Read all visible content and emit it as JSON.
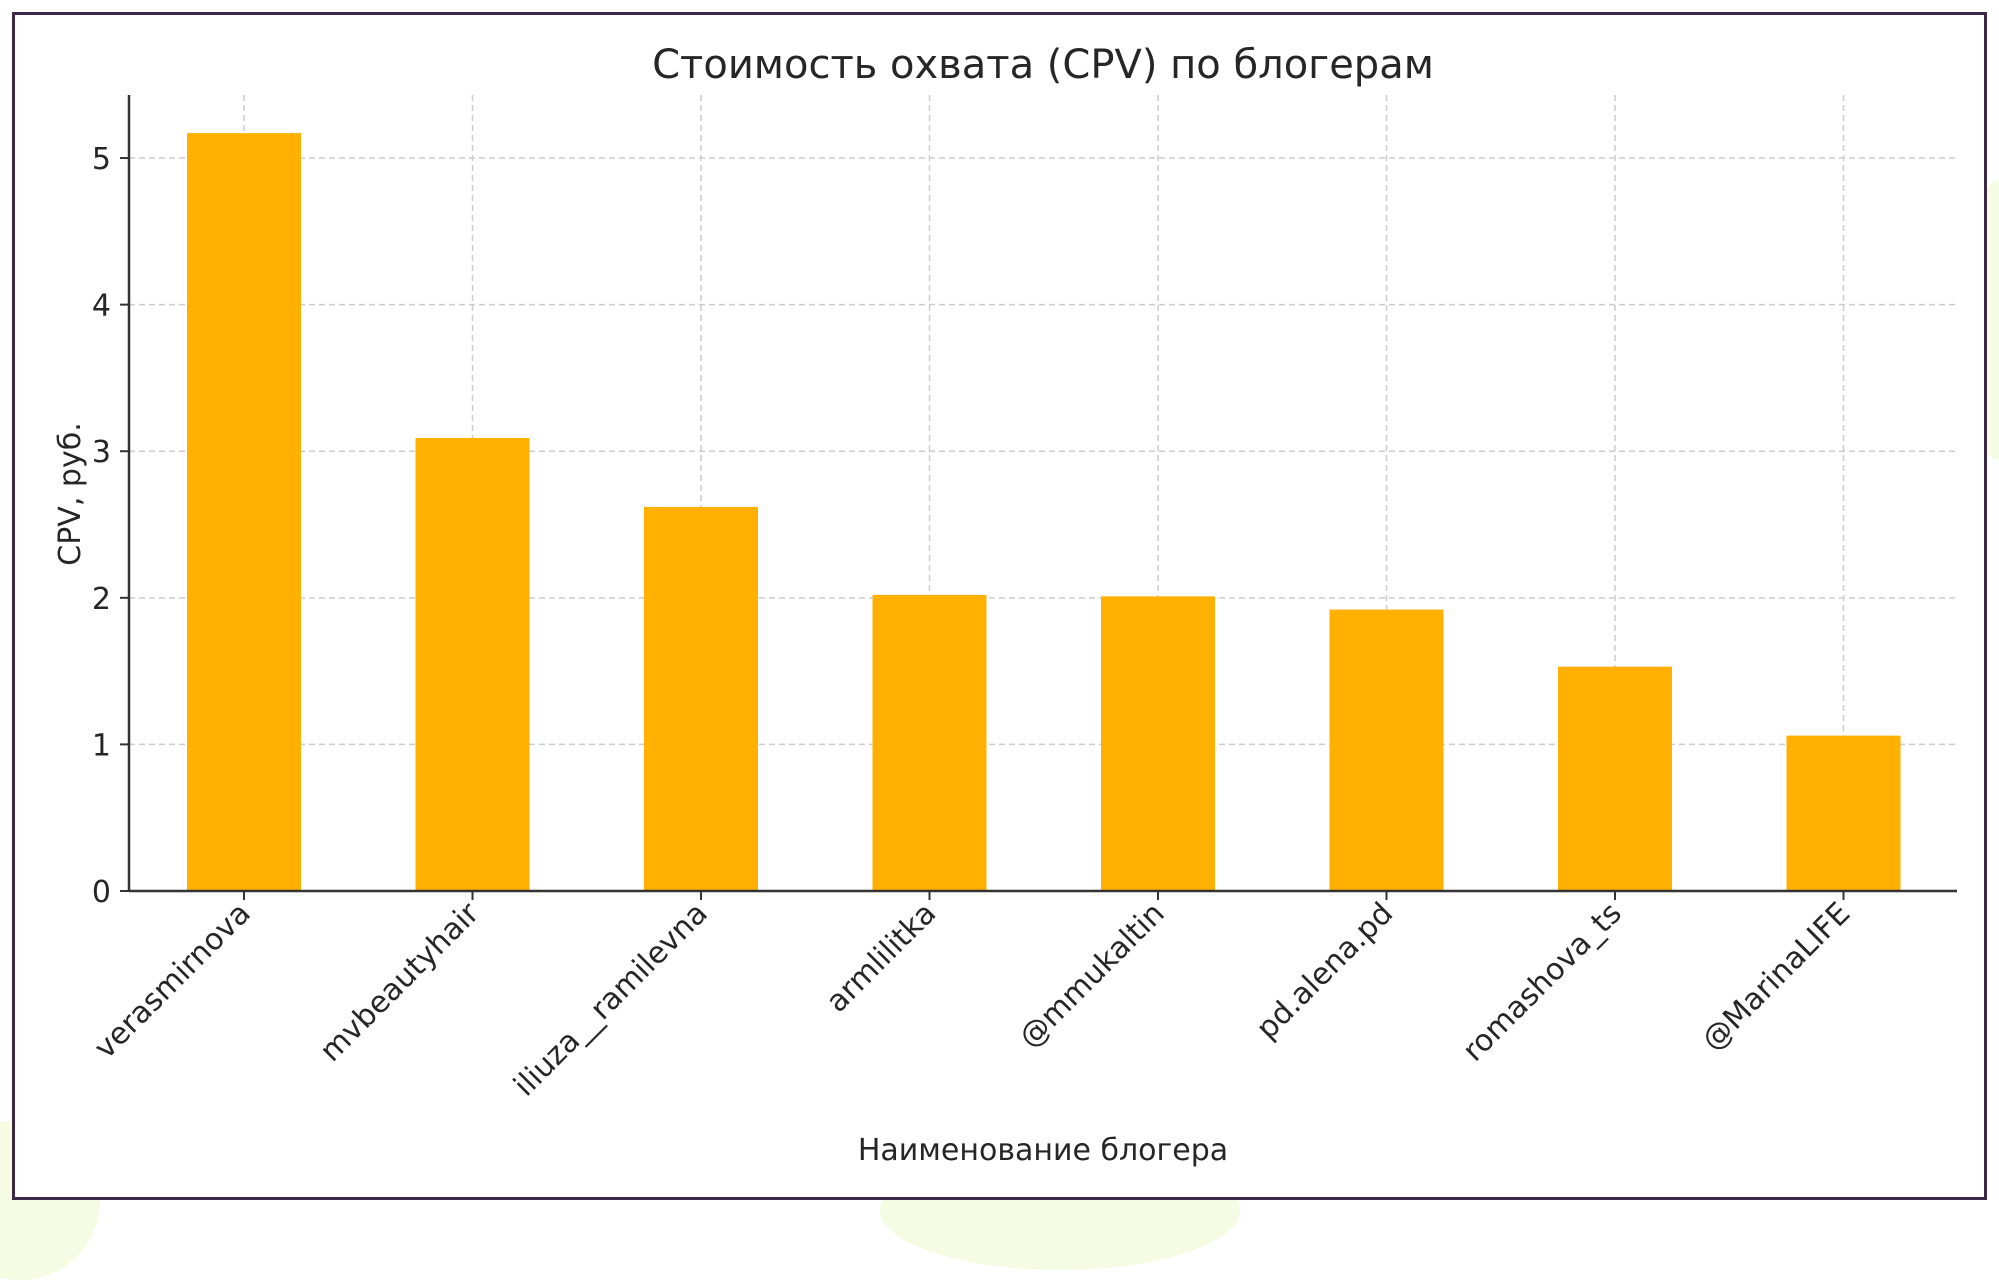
{
  "chart_data": {
    "type": "bar",
    "title": "Стоимость охвата (CPV) по блогерам",
    "xlabel": "Наименование блогера",
    "ylabel": "CPV, руб.",
    "categories": [
      "verasmirnova",
      "mvbeautyhair",
      "iliuza__ramilevna",
      "armlilitka",
      "@mmukaltin",
      "pd.alena.pd",
      "romashova_ts",
      "@MarinaLIFE"
    ],
    "values": [
      5.17,
      3.09,
      2.62,
      2.02,
      2.01,
      1.92,
      1.53,
      1.06
    ],
    "ylim": [
      0,
      5.43
    ],
    "yticks": [
      0,
      1,
      2,
      3,
      4,
      5
    ],
    "grid": true,
    "bar_color": "#ffb000",
    "axis_color": "#333333",
    "grid_color": "#cccccc"
  }
}
